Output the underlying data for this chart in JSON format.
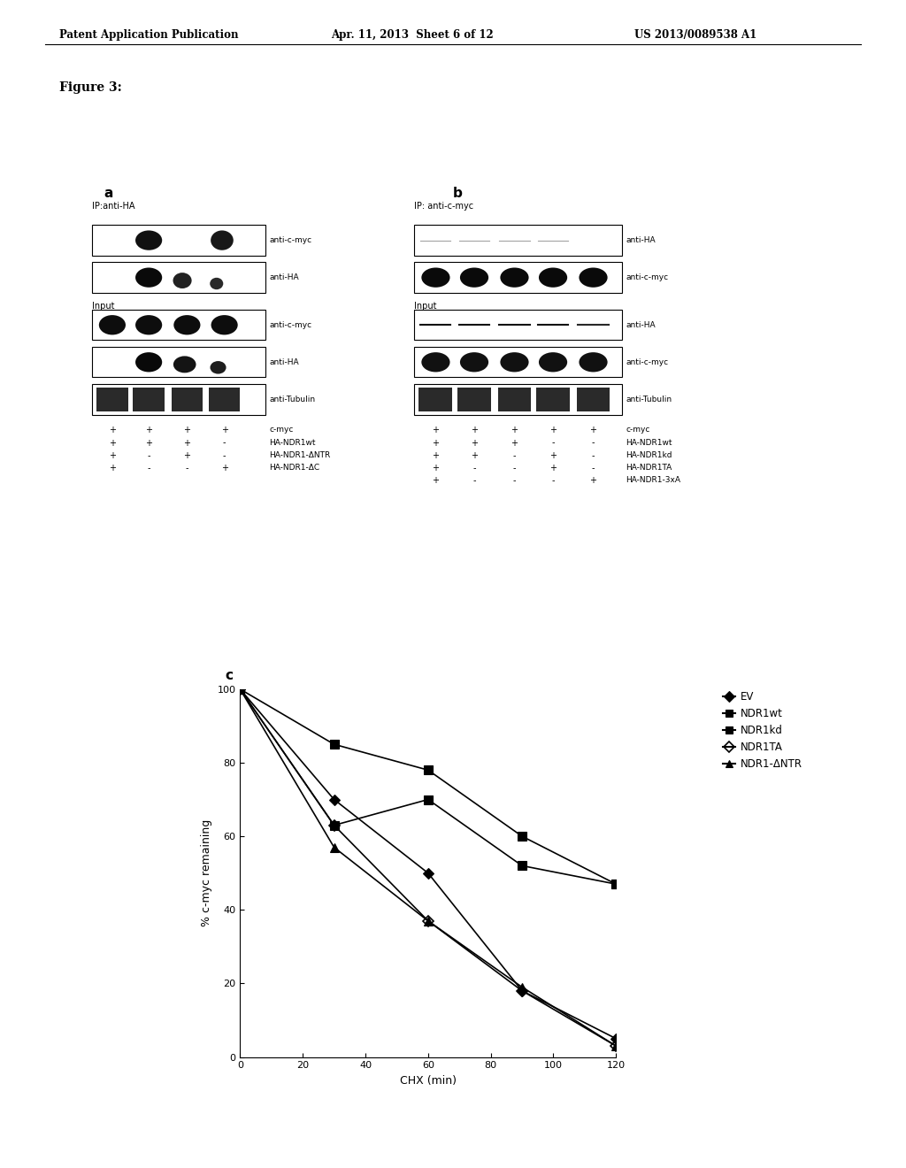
{
  "header_left": "Patent Application Publication",
  "header_mid": "Apr. 11, 2013  Sheet 6 of 12",
  "header_right": "US 2013/0089538 A1",
  "figure_label": "Figure 3:",
  "panel_c_xlabel": "CHX (min)",
  "panel_c_ylabel": "% c-myc remaining",
  "panel_c_xlim": [
    0,
    120
  ],
  "panel_c_ylim": [
    0,
    100
  ],
  "panel_c_xticks": [
    0,
    20,
    40,
    60,
    80,
    100,
    120
  ],
  "panel_c_yticks": [
    0,
    20,
    40,
    60,
    80,
    100
  ],
  "series": [
    {
      "label": "EV",
      "x": [
        0,
        30,
        60,
        90,
        120
      ],
      "y": [
        100,
        70,
        50,
        18,
        5
      ],
      "marker": "D",
      "fillstyle": "full",
      "markersize": 6
    },
    {
      "label": "NDR1wt",
      "x": [
        0,
        30,
        60,
        90,
        120
      ],
      "y": [
        100,
        85,
        78,
        60,
        47
      ],
      "marker": "s",
      "fillstyle": "full",
      "markersize": 7
    },
    {
      "label": "NDR1kd",
      "x": [
        0,
        30,
        60,
        90,
        120
      ],
      "y": [
        100,
        63,
        70,
        52,
        47
      ],
      "marker": "s",
      "fillstyle": "full",
      "markersize": 7
    },
    {
      "label": "NDR1TA",
      "x": [
        0,
        30,
        60,
        90,
        120
      ],
      "y": [
        100,
        63,
        37,
        18,
        3
      ],
      "marker": "D",
      "fillstyle": "none",
      "markersize": 6
    },
    {
      "label": "NDR1-ΔNTR",
      "x": [
        0,
        30,
        60,
        90,
        120
      ],
      "y": [
        100,
        57,
        37,
        19,
        3
      ],
      "marker": "^",
      "fillstyle": "full",
      "markersize": 7
    }
  ],
  "background_color": "#ffffff"
}
